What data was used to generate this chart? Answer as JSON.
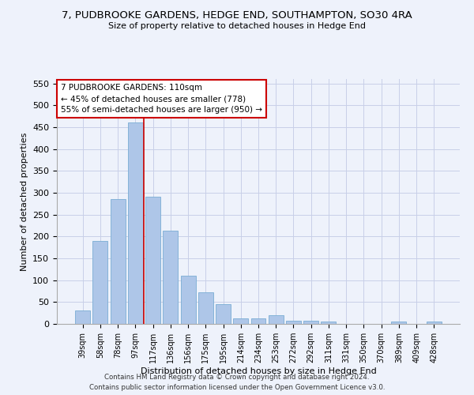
{
  "title": "7, PUDBROOKE GARDENS, HEDGE END, SOUTHAMPTON, SO30 4RA",
  "subtitle": "Size of property relative to detached houses in Hedge End",
  "xlabel": "Distribution of detached houses by size in Hedge End",
  "ylabel": "Number of detached properties",
  "categories": [
    "39sqm",
    "58sqm",
    "78sqm",
    "97sqm",
    "117sqm",
    "136sqm",
    "156sqm",
    "175sqm",
    "195sqm",
    "214sqm",
    "234sqm",
    "253sqm",
    "272sqm",
    "292sqm",
    "311sqm",
    "331sqm",
    "350sqm",
    "370sqm",
    "389sqm",
    "409sqm",
    "428sqm"
  ],
  "values": [
    30,
    190,
    285,
    460,
    290,
    213,
    110,
    73,
    46,
    12,
    12,
    20,
    8,
    7,
    5,
    0,
    0,
    0,
    5,
    0,
    5
  ],
  "bar_color": "#aec6e8",
  "bar_edge_color": "#7aadd4",
  "vline_position": 3.5,
  "vline_color": "#cc0000",
  "annotation_line1": "7 PUDBROOKE GARDENS: 110sqm",
  "annotation_line2": "← 45% of detached houses are smaller (778)",
  "annotation_line3": "55% of semi-detached houses are larger (950) →",
  "annotation_box_color": "#ffffff",
  "annotation_box_edge_color": "#cc0000",
  "ylim": [
    0,
    560
  ],
  "yticks": [
    0,
    50,
    100,
    150,
    200,
    250,
    300,
    350,
    400,
    450,
    500,
    550
  ],
  "footer_line1": "Contains HM Land Registry data © Crown copyright and database right 2024.",
  "footer_line2": "Contains public sector information licensed under the Open Government Licence v3.0.",
  "background_color": "#eef2fb",
  "grid_color": "#c8cfe8"
}
